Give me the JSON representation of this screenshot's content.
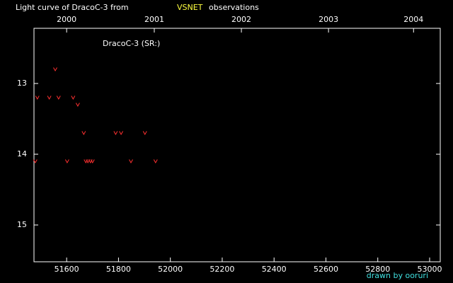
{
  "chart_data": {
    "type": "scatter",
    "title": "Light curve of DracoC-3 from",
    "title_source": "VSNET",
    "title_suffix": "observations",
    "credit": "drawn by ooruri",
    "background": "#000000",
    "axis_color": "#ffffff",
    "title_source_color": "#ffff40",
    "credit_color": "#40e0e0",
    "marker": "v",
    "series": [
      {
        "name": "DracoC-3 (SR:)",
        "color": "#ff3030",
        "x": [
          51479,
          51487,
          51533,
          51556,
          51569,
          51602,
          51625,
          51643,
          51666,
          51674,
          51682,
          51692,
          51700,
          51789,
          51810,
          51848,
          51902,
          51943
        ],
        "values": [
          14.1,
          13.2,
          13.2,
          12.8,
          13.2,
          14.1,
          13.2,
          13.3,
          13.7,
          14.1,
          14.1,
          14.1,
          14.1,
          13.7,
          13.7,
          14.1,
          13.7,
          14.1
        ]
      }
    ],
    "xlim": [
      51474,
      53041
    ],
    "xticks": [
      51600,
      51800,
      52000,
      52200,
      52400,
      52600,
      52800,
      53000
    ],
    "x2ticks": [
      {
        "value": 51600,
        "label": "2000"
      },
      {
        "value": 51938,
        "label": "2001"
      },
      {
        "value": 52274,
        "label": "2002"
      },
      {
        "value": 52610,
        "label": "2003"
      },
      {
        "value": 52938,
        "label": "2004"
      }
    ],
    "ylim": [
      15.52,
      12.22
    ],
    "yticks": [
      13,
      14,
      15
    ]
  }
}
